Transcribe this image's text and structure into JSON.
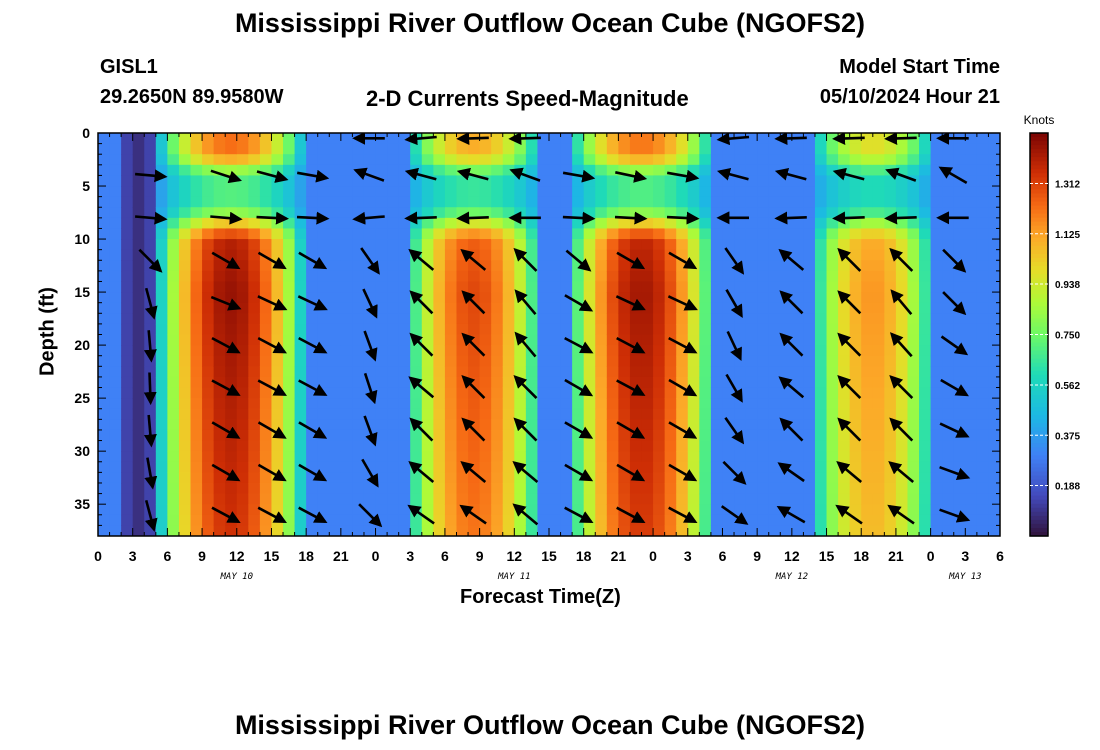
{
  "header": {
    "title": "Mississippi River Outflow Ocean Cube (NGOFS2)",
    "station_id": "GISL1",
    "station_coords": "29.2650N  89.9580W",
    "subtitle": "2-D Currents Speed-Magnitude",
    "model_start_label": "Model Start Time",
    "model_start_value": "05/10/2024 Hour 21"
  },
  "footer": {
    "title": "Mississippi River Outflow Ocean Cube (NGOFS2)"
  },
  "chart_data": {
    "type": "heatmap",
    "title": "2-D Currents Speed-Magnitude",
    "xlabel": "Forecast Time(Z)",
    "ylabel": "Depth (ft)",
    "x_hours_range": [
      0,
      78
    ],
    "x_tick_labels": [
      "0",
      "3",
      "6",
      "9",
      "12",
      "15",
      "18",
      "21",
      "0",
      "3",
      "6",
      "9",
      "12",
      "15",
      "18",
      "21",
      "0",
      "3",
      "6",
      "9",
      "12",
      "15",
      "18",
      "21",
      "0",
      "3",
      "6"
    ],
    "day_labels": [
      {
        "label": "MAY 10",
        "hour": 12
      },
      {
        "label": "MAY 11",
        "hour": 36
      },
      {
        "label": "MAY 12",
        "hour": 60
      },
      {
        "label": "MAY 13",
        "hour": 75
      }
    ],
    "y_range": [
      0,
      38
    ],
    "y_ticks": [
      0,
      5,
      10,
      15,
      20,
      25,
      30,
      35
    ],
    "colorbar": {
      "title": "Knots",
      "range": [
        0,
        1.5
      ],
      "tick_values": [
        0.188,
        0.375,
        0.562,
        0.75,
        0.938,
        1.125,
        1.312
      ],
      "tick_labels": [
        "0.188",
        "0.375",
        "0.562",
        "0.750",
        "0.938",
        "1.125",
        "1.312"
      ]
    },
    "speed_events": [
      {
        "center_hour": 11.5,
        "half_width": 6.5,
        "peak_knots": 1.45
      },
      {
        "center_hour": 32.5,
        "half_width": 6.0,
        "peak_knots": 1.3
      },
      {
        "center_hour": 47.0,
        "half_width": 6.5,
        "peak_knots": 1.43
      },
      {
        "center_hour": 67.0,
        "half_width": 5.5,
        "peak_knots": 1.15
      }
    ],
    "vector_columns": [
      {
        "hour": 4.5,
        "row_dirs": [
          null,
          5,
          5,
          45,
          75,
          85,
          88,
          85,
          80,
          75
        ]
      },
      {
        "hour": 6.5,
        "row_dirs": [
          null,
          null,
          null,
          null,
          null,
          null,
          null,
          null,
          null,
          null
        ]
      },
      {
        "hour": 11,
        "row_dirs": [
          null,
          18,
          5,
          30,
          22,
          28,
          28,
          30,
          30,
          28
        ]
      },
      {
        "hour": 15,
        "row_dirs": [
          null,
          15,
          3,
          30,
          25,
          28,
          28,
          30,
          30,
          28
        ]
      },
      {
        "hour": 18.5,
        "row_dirs": [
          null,
          10,
          3,
          30,
          25,
          28,
          28,
          30,
          30,
          28
        ]
      },
      {
        "hour": 23.5,
        "row_dirs": [
          180,
          200,
          175,
          55,
          65,
          70,
          72,
          70,
          60,
          45
        ]
      },
      {
        "hour": 28,
        "row_dirs": [
          175,
          195,
          178,
          220,
          225,
          225,
          220,
          225,
          220,
          215
        ]
      },
      {
        "hour": 32.5,
        "row_dirs": [
          178,
          195,
          178,
          220,
          225,
          225,
          225,
          225,
          220,
          215
        ]
      },
      {
        "hour": 37,
        "row_dirs": [
          178,
          200,
          180,
          225,
          230,
          230,
          225,
          225,
          220,
          220
        ]
      },
      {
        "hour": 41.5,
        "row_dirs": [
          null,
          10,
          3,
          40,
          30,
          28,
          30,
          30,
          30,
          28
        ]
      },
      {
        "hour": 46,
        "row_dirs": [
          null,
          12,
          3,
          30,
          25,
          28,
          28,
          30,
          30,
          28
        ]
      },
      {
        "hour": 50.5,
        "row_dirs": [
          null,
          10,
          3,
          30,
          25,
          28,
          30,
          30,
          30,
          28
        ]
      },
      {
        "hour": 55,
        "row_dirs": [
          175,
          195,
          180,
          55,
          60,
          65,
          60,
          55,
          45,
          35
        ]
      },
      {
        "hour": 60,
        "row_dirs": [
          178,
          195,
          178,
          220,
          225,
          225,
          220,
          225,
          215,
          210
        ]
      },
      {
        "hour": 65,
        "row_dirs": [
          178,
          195,
          178,
          225,
          225,
          225,
          225,
          225,
          220,
          215
        ]
      },
      {
        "hour": 69.5,
        "row_dirs": [
          178,
          200,
          178,
          225,
          230,
          228,
          225,
          225,
          220,
          215
        ]
      },
      {
        "hour": 74,
        "row_dirs": [
          180,
          210,
          180,
          45,
          45,
          35,
          30,
          25,
          20,
          20
        ]
      }
    ],
    "vector_row_depths": [
      0.5,
      4,
      8,
      12,
      16,
      20,
      24,
      28,
      32,
      36
    ]
  }
}
